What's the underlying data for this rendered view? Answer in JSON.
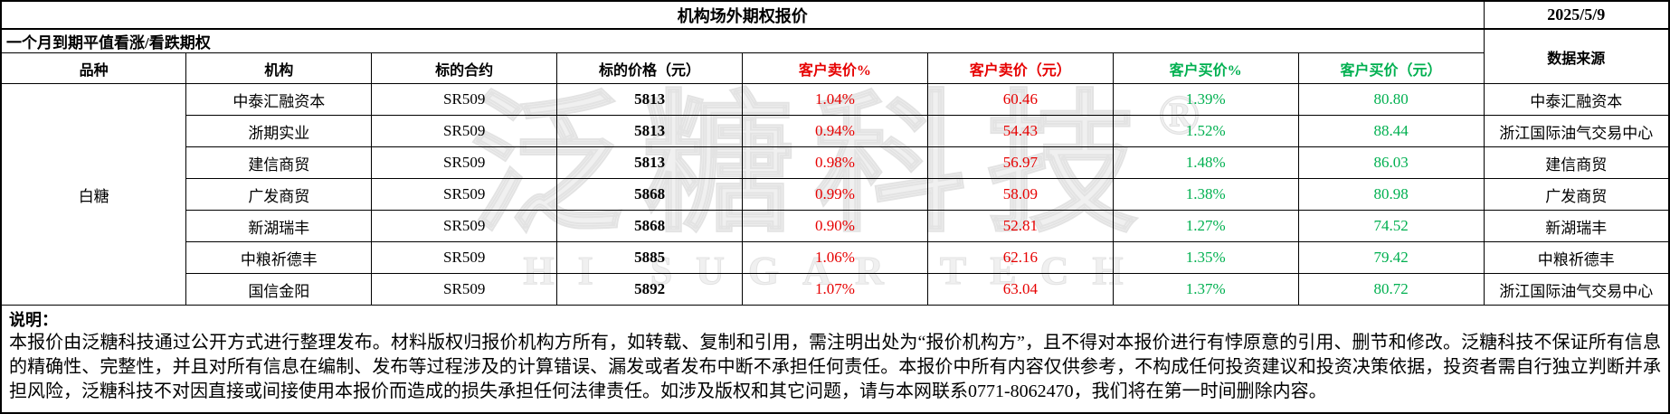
{
  "header": {
    "title": "机构场外期权报价",
    "date": "2025/5/9",
    "subtitle": "一个月到期平值看涨/看跌期权"
  },
  "table": {
    "columns": [
      "品种",
      "机构",
      "标的合约",
      "标的价格（元）",
      "客户卖价%",
      "客户卖价（元）",
      "客户买价%",
      "客户买价（元）",
      "数据来源"
    ],
    "variety": "白糖",
    "rows": [
      {
        "institution": "中泰汇融资本",
        "contract": "SR509",
        "price": "5813",
        "sell_pct": "1.04%",
        "sell_yuan": "60.46",
        "buy_pct": "1.39%",
        "buy_yuan": "80.80",
        "source": "中泰汇融资本"
      },
      {
        "institution": "浙期实业",
        "contract": "SR509",
        "price": "5813",
        "sell_pct": "0.94%",
        "sell_yuan": "54.43",
        "buy_pct": "1.52%",
        "buy_yuan": "88.44",
        "source": "浙江国际油气交易中心"
      },
      {
        "institution": "建信商贸",
        "contract": "SR509",
        "price": "5813",
        "sell_pct": "0.98%",
        "sell_yuan": "56.97",
        "buy_pct": "1.48%",
        "buy_yuan": "86.03",
        "source": "建信商贸"
      },
      {
        "institution": "广发商贸",
        "contract": "SR509",
        "price": "5868",
        "sell_pct": "0.99%",
        "sell_yuan": "58.09",
        "buy_pct": "1.38%",
        "buy_yuan": "80.98",
        "source": "广发商贸"
      },
      {
        "institution": "新湖瑞丰",
        "contract": "SR509",
        "price": "5868",
        "sell_pct": "0.90%",
        "sell_yuan": "52.81",
        "buy_pct": "1.27%",
        "buy_yuan": "74.52",
        "source": "新湖瑞丰"
      },
      {
        "institution": "中粮祈德丰",
        "contract": "SR509",
        "price": "5885",
        "sell_pct": "1.06%",
        "sell_yuan": "62.16",
        "buy_pct": "1.35%",
        "buy_yuan": "79.42",
        "source": "中粮祈德丰"
      },
      {
        "institution": "国信金阳",
        "contract": "SR509",
        "price": "5892",
        "sell_pct": "1.07%",
        "sell_yuan": "63.04",
        "buy_pct": "1.37%",
        "buy_yuan": "80.72",
        "source": "浙江国际油气交易中心"
      }
    ]
  },
  "note": {
    "label": "说明：",
    "text": "本报价由泛糖科技通过公开方式进行整理发布。材料版权归报价机构方所有，如转载、复制和引用，需注明出处为“报价机构方”，且不得对本报价进行有悖原意的引用、删节和修改。泛糖科技不保证所有信息的精确性、完整性，并且对所有信息在编制、发布等过程涉及的计算错误、漏发或者发布中断不承担任何责任。本报价中所有内容仅供参考，不构成任何投资建议和投资决策依据，投资者需自行独立判断并承担风险，泛糖科技不对因直接或间接使用本报价而造成的损失承担任何法律责任。如涉及版权和其它问题，请与本网联系0771-8062470，我们将在第一时间删除内容。"
  },
  "watermark": {
    "cn": "泛糖科技",
    "reg": "®",
    "en": "HI SUGAR TECH"
  },
  "colors": {
    "sell_red": "#e60000",
    "buy_green": "#00b050"
  }
}
